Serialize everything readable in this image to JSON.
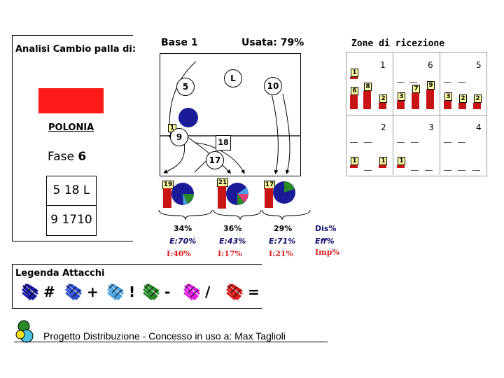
{
  "left_panel": {
    "title": "Analisi Cambio palla di:",
    "team": "POLONIA",
    "fase_label": "Fase",
    "fase_value": "6",
    "rotations": [
      "5 18 L",
      "9 1710"
    ]
  },
  "court": {
    "base_label": "Base 1",
    "usata_label": "Usata: 79%",
    "players": {
      "p5": "5",
      "pL": "L",
      "p10": "10",
      "p9": "9",
      "p17": "17",
      "p18": "18"
    },
    "tag": "1"
  },
  "attack_stats": [
    {
      "count": "19",
      "pct": "34%",
      "eff": "E:70%",
      "imp": "I:40%"
    },
    {
      "count": "21",
      "pct": "36%",
      "eff": "E:43%",
      "imp": "I:17%"
    },
    {
      "count": "17",
      "pct": "29%",
      "eff": "E:71%",
      "imp": "I:21%"
    }
  ],
  "stat_legend": {
    "dis": "Dis%",
    "eff": "Eff%",
    "imp": "Imp%"
  },
  "reception": {
    "title": "Zone di ricezione",
    "zones": [
      {
        "num": "1",
        "tags": [
          "1",
          "6",
          "8",
          "2"
        ]
      },
      {
        "num": "6",
        "tags": [
          "3",
          "7",
          "9"
        ]
      },
      {
        "num": "5",
        "tags": [
          "3",
          "2",
          "2"
        ]
      },
      {
        "num": "2",
        "tags": [
          "1",
          "1"
        ]
      },
      {
        "num": "3",
        "tags": [
          "1"
        ]
      },
      {
        "num": "4",
        "tags": []
      }
    ]
  },
  "legend": {
    "title": "Legenda Attacchi",
    "symbols": [
      "#",
      "+",
      "!",
      "-",
      "/",
      "="
    ],
    "colors": [
      "#1a1aa0",
      "#3050d0",
      "#4aa0e0",
      "#2a8a2a",
      "#e020e0",
      "#d81c1c"
    ]
  },
  "footer": {
    "text": "Progetto Distribuzione - Concesso in uso a:",
    "owner": "Max Taglioli"
  },
  "colors": {
    "red_box": "#ff1a1a",
    "bar": "#c81414",
    "blue_ball": "#1b1b9a"
  }
}
